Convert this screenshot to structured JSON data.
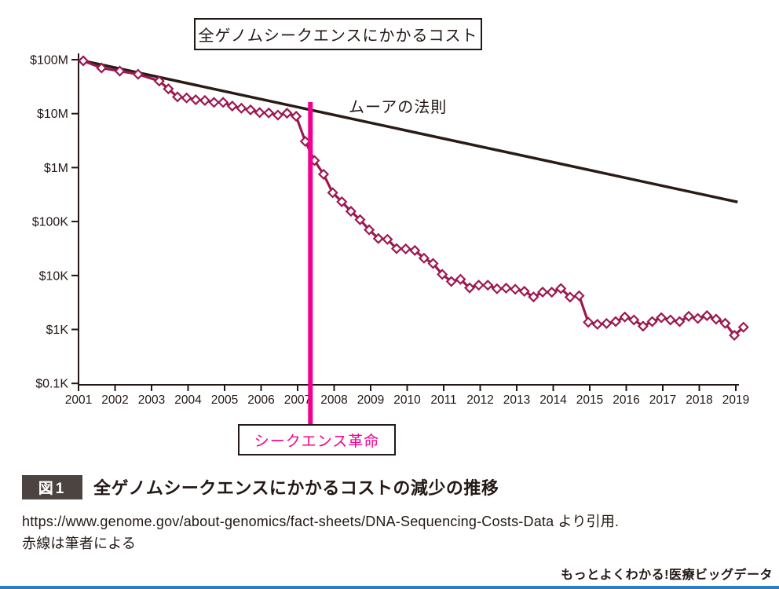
{
  "page": {
    "footer_brand": "もっとよくわかる!医療ビッグデータ",
    "accent_blue": "#2d7fc1",
    "text_color": "#231815"
  },
  "chart": {
    "title_box": "全ゲノムシークエンスにかかるコスト",
    "moore_label": "ムーアの法則",
    "revolution_label": "シークエンス革命"
  },
  "caption": {
    "badge": "図1",
    "title": "全ゲノムシークエンスにかかるコストの減少の推移",
    "source_line1": "https://www.genome.gov/about-genomics/fact-sheets/DNA-Sequencing-Costs-Data より引用.",
    "source_line2": "赤線は筆者による"
  },
  "chart_data": {
    "type": "line",
    "title": "全ゲノムシークエンスにかかるコスト",
    "xlabel": "",
    "ylabel": "",
    "y_scale": "log",
    "grid": false,
    "legend": "none",
    "x_axis": {
      "ticks": [
        2001,
        2002,
        2003,
        2004,
        2005,
        2006,
        2007,
        2008,
        2009,
        2010,
        2011,
        2012,
        2013,
        2014,
        2015,
        2016,
        2017,
        2018,
        2019
      ],
      "range": [
        2001,
        2019.3
      ]
    },
    "y_axis": {
      "tick_labels": [
        "$100M",
        "$10M",
        "$1M",
        "$100K",
        "$10K",
        "$1K",
        "$0.1K"
      ],
      "tick_values": [
        100000000,
        10000000,
        1000000,
        100000,
        10000,
        1000,
        100
      ],
      "range": [
        100,
        100000000
      ]
    },
    "annotations": {
      "revolution_x": 2007.35,
      "revolution_label": "シークエンス革命",
      "revolution_color": "#f4008f",
      "moore_label": "ムーアの法則"
    },
    "series": [
      {
        "name": "全ゲノムシークエンスにかかるコスト",
        "color": "#9c1850",
        "marker": "diamond",
        "points": [
          [
            2001.13,
            95263072
          ],
          [
            2001.63,
            70175437
          ],
          [
            2002.13,
            61448422
          ],
          [
            2002.63,
            53751684
          ],
          [
            2003.21,
            40157554
          ],
          [
            2003.46,
            28780376
          ],
          [
            2003.71,
            20442576
          ],
          [
            2003.96,
            19550988
          ],
          [
            2004.21,
            18072400
          ],
          [
            2004.46,
            17534970
          ],
          [
            2004.71,
            16159699
          ],
          [
            2004.96,
            16180224
          ],
          [
            2005.21,
            13801124
          ],
          [
            2005.46,
            12585659
          ],
          [
            2005.71,
            11732535
          ],
          [
            2005.96,
            10474556
          ],
          [
            2006.21,
            10314926
          ],
          [
            2006.46,
            9408739
          ],
          [
            2006.71,
            10174120
          ],
          [
            2006.96,
            8927342
          ],
          [
            2007.21,
            3063820
          ],
          [
            2007.46,
            1352982
          ],
          [
            2007.71,
            752080
          ],
          [
            2007.96,
            342502
          ],
          [
            2008.21,
            232735
          ],
          [
            2008.46,
            154714
          ],
          [
            2008.71,
            108065
          ],
          [
            2008.96,
            70333
          ],
          [
            2009.21,
            48462
          ],
          [
            2009.46,
            46774
          ],
          [
            2009.71,
            31512
          ],
          [
            2009.96,
            31125
          ],
          [
            2010.21,
            29092
          ],
          [
            2010.46,
            20963
          ],
          [
            2010.71,
            16712
          ],
          [
            2010.96,
            10497
          ],
          [
            2011.21,
            7743
          ],
          [
            2011.46,
            8498
          ],
          [
            2011.71,
            5901
          ],
          [
            2011.96,
            6618
          ],
          [
            2012.21,
            6618
          ],
          [
            2012.46,
            5671
          ],
          [
            2012.71,
            5826
          ],
          [
            2012.96,
            5550
          ],
          [
            2013.21,
            5096
          ],
          [
            2013.46,
            4008
          ],
          [
            2013.71,
            4920
          ],
          [
            2013.96,
            4905
          ],
          [
            2014.21,
            5731
          ],
          [
            2014.46,
            3970
          ],
          [
            2014.71,
            4211
          ],
          [
            2014.96,
            1363
          ],
          [
            2015.21,
            1245
          ],
          [
            2015.46,
            1290
          ],
          [
            2015.71,
            1400
          ],
          [
            2015.96,
            1700
          ],
          [
            2016.21,
            1500
          ],
          [
            2016.46,
            1150
          ],
          [
            2016.71,
            1400
          ],
          [
            2016.96,
            1650
          ],
          [
            2017.21,
            1500
          ],
          [
            2017.46,
            1400
          ],
          [
            2017.71,
            1750
          ],
          [
            2017.96,
            1600
          ],
          [
            2018.21,
            1800
          ],
          [
            2018.46,
            1550
          ],
          [
            2018.71,
            1300
          ],
          [
            2018.96,
            780
          ],
          [
            2019.21,
            1100
          ]
        ]
      },
      {
        "name": "ムーアの法則",
        "color": "#2a1c14",
        "marker": "none",
        "points": [
          [
            2001.13,
            95263072
          ],
          [
            2019.05,
            230000
          ]
        ]
      }
    ]
  }
}
